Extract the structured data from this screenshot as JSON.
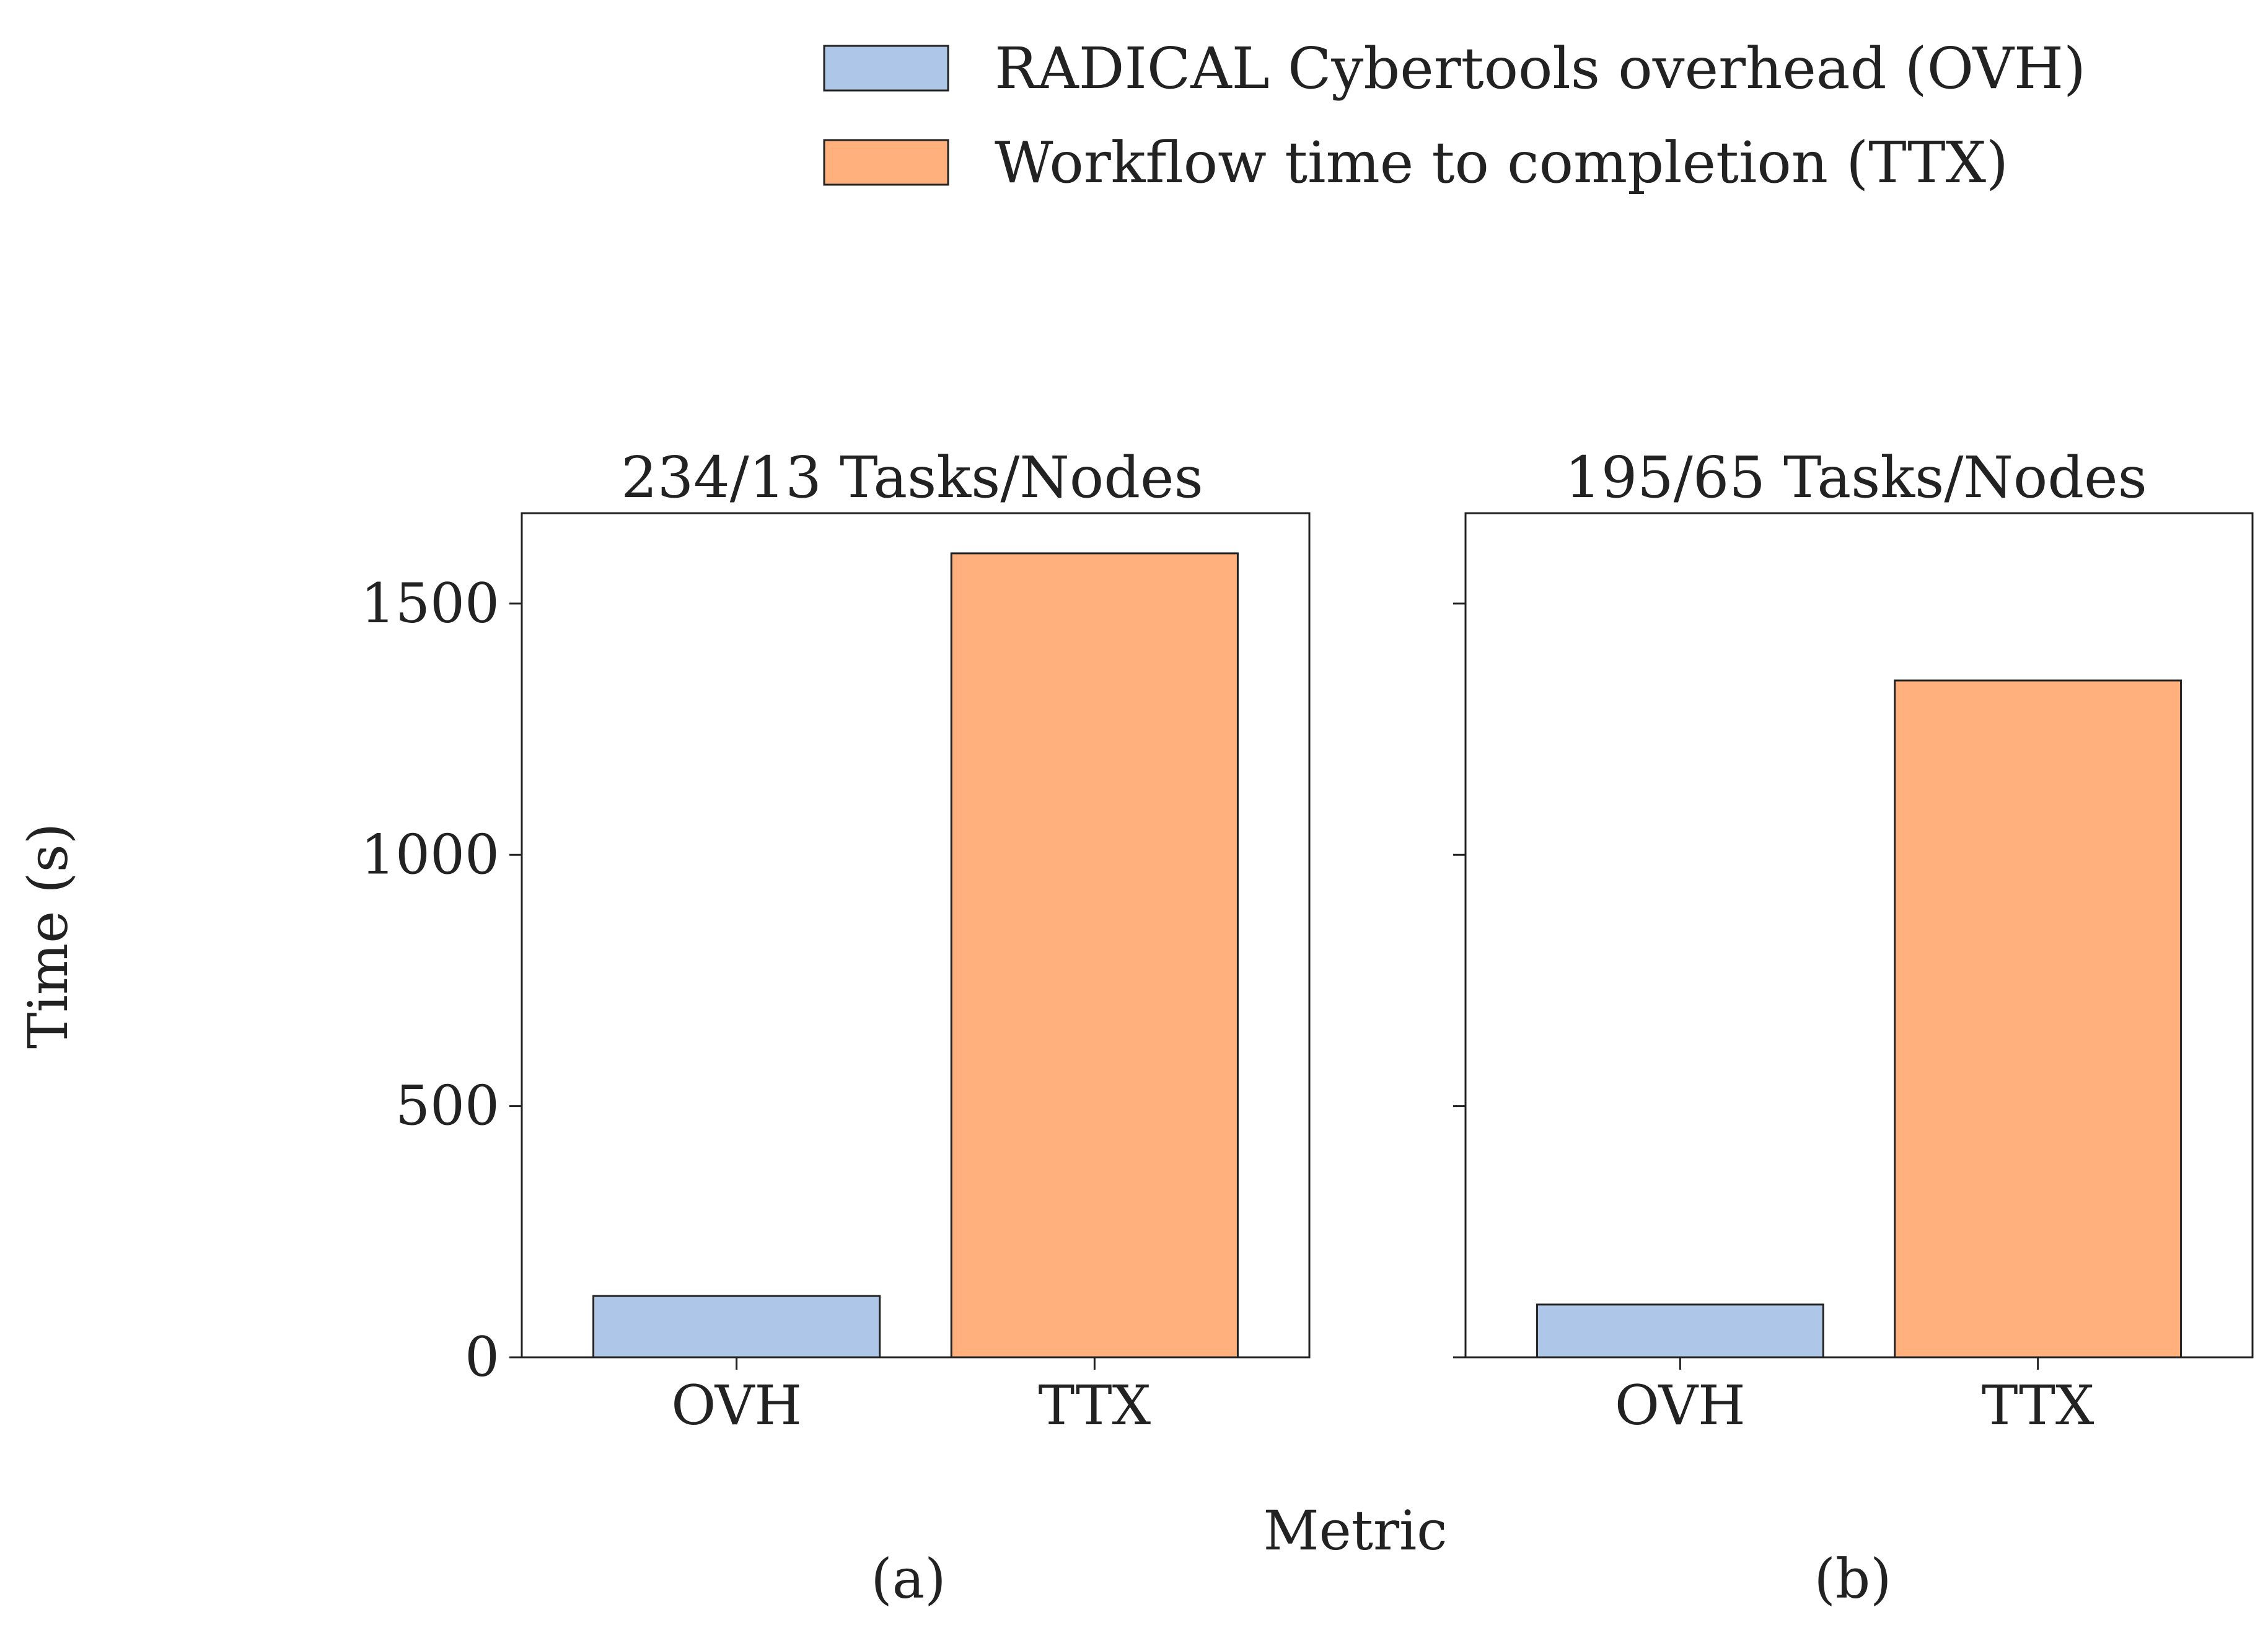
{
  "chart_data": {
    "type": "bar",
    "legend": {
      "placement": "top",
      "entries": [
        {
          "label": "RADICAL Cybertools overhead (OVH)",
          "color": "#aec7e8"
        },
        {
          "label": "Workflow time to completion (TTX)",
          "color": "#ffb07c"
        }
      ]
    },
    "ylabel": "Time (s)",
    "xlabel": "Metric",
    "ylim": [
      0,
      1680
    ],
    "yticks": [
      0,
      500,
      1000,
      1500
    ],
    "panels": [
      {
        "title": "234/13 Tasks/Nodes",
        "caption": "(a)",
        "categories": [
          "OVH",
          "TTX"
        ],
        "values": [
          122,
          1600
        ],
        "colors": [
          "#aec7e8",
          "#ffb07c"
        ]
      },
      {
        "title": "195/65 Tasks/Nodes",
        "caption": "(b)",
        "categories": [
          "OVH",
          "TTX"
        ],
        "values": [
          105,
          1347
        ],
        "colors": [
          "#aec7e8",
          "#ffb07c"
        ]
      }
    ]
  }
}
